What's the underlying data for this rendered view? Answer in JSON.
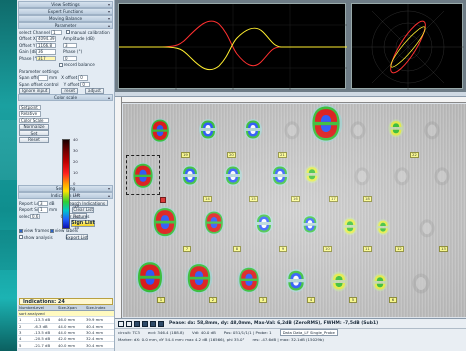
{
  "left_panel": {
    "headers": {
      "view_settings": "View Settings",
      "expert_functions": "Expert Functions",
      "moving_balance": "Moving Balance",
      "parameter": "Parameter",
      "color_scale": "Color scale",
      "selecting": "Selecting",
      "indication_list": "Indication List"
    },
    "parameter": {
      "select_channel_label": "select Channel",
      "select_channel_value": "1",
      "manual_calibration_label": "manual calibration",
      "offset_x_label": "Offset X",
      "offset_x_value": "4094.39",
      "offset_y_label": "Offset Y",
      "offset_y_value": "1166.8",
      "gain_label": "Gain [dB]",
      "gain_value": "36",
      "phase_label": "Phase [°]",
      "phase_value": "317",
      "amplitude_label": "Amplitude (dB)",
      "amplitude_value": "3",
      "phase_r_label": "Phase (°)",
      "phase_r_value": "0",
      "record_balance": "record balance"
    },
    "filter": {
      "title": "Parameter settings",
      "span_offset_label": "Span offset",
      "span_offset_unit": "mm",
      "span_offset_control_label": "Span offset control",
      "x_offset_label": "X offset",
      "x_offset_value": "0",
      "y_offset_label": "Y offset",
      "y_offset_value": "0",
      "ignore_input": "Ignore input",
      "reset": "reset",
      "adjust": "adjust"
    },
    "color_scale": {
      "ticks": [
        "40",
        "30",
        "20",
        "10",
        "0",
        "-10",
        "-20",
        "-30",
        "-40"
      ],
      "setpoint_label": "Setpoint",
      "mode_label": "Relative",
      "dropdown_label": "Color Scale",
      "normalize": "Normalize",
      "set_label": "Set",
      "reset_label": "Reset"
    },
    "indication": {
      "report_level_label": "Report Level",
      "report_level_value": "3",
      "report_level_unit": "dB",
      "report_size_label": "Report Size",
      "report_size_value": "1",
      "report_size_unit": "mm",
      "select_label": "select",
      "select_value": "0.6",
      "search_button": "Search Indications",
      "clear_list": "Clear List",
      "clear_pictures": "Clear Pictures",
      "sign_list": "Sign List",
      "export_list": "Export List",
      "view_frames": "view frames",
      "view_labels": "view labels",
      "show_analysis": "show analysis"
    },
    "indications_count_label": "Indications: 24",
    "table": {
      "columns": [
        "Number",
        "Level",
        "Size-Xpan",
        "Size-lndex"
      ],
      "rows": [
        {
          "n": "1",
          "level": "-13.3 dB",
          "sx": "46.0 mm",
          "si": "39.9 mm"
        },
        {
          "n": "2",
          "level": "-6.3 dB",
          "sx": "44.0 mm",
          "si": "40.4 mm"
        },
        {
          "n": "3",
          "level": "-13.5 dB",
          "sx": "44.0 mm",
          "si": "30.4 mm"
        },
        {
          "n": "4",
          "level": "-20.5 dB",
          "sx": "42.0 mm",
          "si": "32.4 mm"
        },
        {
          "n": "5",
          "level": "-21.7 dB",
          "sx": "40.0 mm",
          "si": "30.4 mm"
        }
      ],
      "sort_row": "sort analyzed"
    }
  },
  "scan": {
    "labels_row1": [
      "19",
      "20",
      "21",
      "22"
    ],
    "labels_row2": [
      "14",
      "15",
      "16",
      "17",
      "18"
    ],
    "labels_row3": [
      "7",
      "8",
      "9",
      "10",
      "11",
      "12",
      "13"
    ],
    "labels_row4": [
      "1",
      "2",
      "3",
      "4",
      "5",
      "6"
    ]
  },
  "status": {
    "headline": "Pease: dx: 58,8mm, dy: 48,0mm, Max-Val: 6,2dB (ZeroRMS), FWHM: -7,5dB (Sub1)",
    "line2_a": "circuit: TC3",
    "line2_b": "ecd: 346.4 (188.8)",
    "line2_c": "Vdl: 40.0 dB",
    "line2_d": "Pos: 051/1/1/1 | Probe: 1",
    "line2_e": "Data Data_LF Single_Probe",
    "line3_a": "Marker: dX: 0.0 mm, dY 54.4 mm: max 4.2 dB (16566), phi 35.0°",
    "line3_b": "res: -47.6dB | max: 32.1dB (15029b)"
  },
  "colors": {
    "strip": "#1aa0a0",
    "panel": "#e3ebf3",
    "indicator_red": "#e01010",
    "indicator_green": "#30c030",
    "indicator_blue": "#2050ff"
  }
}
